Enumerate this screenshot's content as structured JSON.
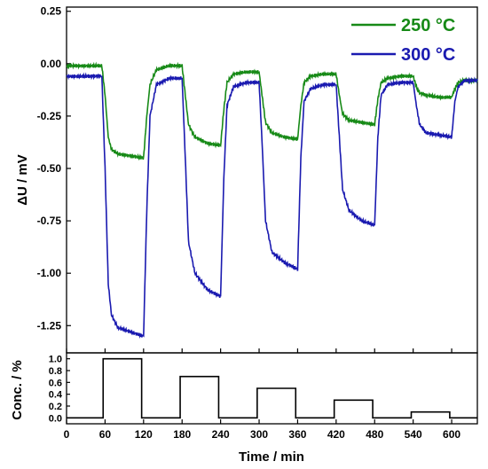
{
  "chart_data": [
    {
      "type": "line",
      "panel": "top",
      "xlabel": "Time / min",
      "ylabel": "ΔU / mV",
      "xlim": [
        0,
        640
      ],
      "ylim": [
        -1.38,
        0.27
      ],
      "x_ticks": [
        0,
        60,
        120,
        180,
        240,
        300,
        360,
        420,
        480,
        540,
        600
      ],
      "y_ticks": [
        0.25,
        0.0,
        -0.25,
        -0.5,
        -0.75,
        -1.0,
        -1.25
      ],
      "y_tick_labels": [
        "0.25",
        "0.00",
        "-0.25",
        "-0.50",
        "-0.75",
        "-1.00",
        "-1.25"
      ],
      "legend_position": "top-right",
      "grid": false,
      "series": [
        {
          "name": "250 °C",
          "color": "#178a17",
          "x": [
            0,
            55,
            60,
            65,
            70,
            80,
            100,
            120,
            125,
            130,
            140,
            160,
            180,
            185,
            190,
            200,
            220,
            240,
            245,
            250,
            260,
            280,
            300,
            305,
            310,
            320,
            340,
            360,
            365,
            370,
            380,
            400,
            420,
            425,
            430,
            440,
            460,
            480,
            485,
            490,
            500,
            520,
            540,
            545,
            550,
            560,
            580,
            600,
            605,
            610,
            620,
            640
          ],
          "values": [
            -0.01,
            -0.01,
            -0.15,
            -0.35,
            -0.41,
            -0.43,
            -0.44,
            -0.45,
            -0.25,
            -0.1,
            -0.03,
            -0.01,
            -0.01,
            -0.15,
            -0.29,
            -0.35,
            -0.38,
            -0.39,
            -0.22,
            -0.09,
            -0.05,
            -0.04,
            -0.04,
            -0.16,
            -0.28,
            -0.33,
            -0.35,
            -0.36,
            -0.2,
            -0.09,
            -0.06,
            -0.05,
            -0.05,
            -0.15,
            -0.24,
            -0.27,
            -0.28,
            -0.29,
            -0.17,
            -0.09,
            -0.07,
            -0.06,
            -0.06,
            -0.11,
            -0.14,
            -0.15,
            -0.16,
            -0.16,
            -0.12,
            -0.09,
            -0.08,
            -0.08
          ]
        },
        {
          "name": "300 °C",
          "color": "#1a1ab0",
          "x": [
            0,
            55,
            60,
            65,
            70,
            80,
            100,
            120,
            125,
            130,
            140,
            160,
            180,
            185,
            190,
            200,
            220,
            240,
            245,
            250,
            260,
            280,
            300,
            305,
            310,
            320,
            340,
            360,
            365,
            370,
            380,
            400,
            420,
            425,
            430,
            440,
            460,
            480,
            485,
            490,
            500,
            520,
            540,
            545,
            550,
            560,
            580,
            600,
            605,
            610,
            620,
            640
          ],
          "values": [
            -0.06,
            -0.06,
            -0.5,
            -1.05,
            -1.2,
            -1.26,
            -1.28,
            -1.3,
            -0.7,
            -0.25,
            -0.1,
            -0.07,
            -0.07,
            -0.45,
            -0.85,
            -1.0,
            -1.08,
            -1.11,
            -0.55,
            -0.2,
            -0.11,
            -0.09,
            -0.09,
            -0.4,
            -0.75,
            -0.9,
            -0.95,
            -0.98,
            -0.45,
            -0.18,
            -0.12,
            -0.1,
            -0.1,
            -0.35,
            -0.6,
            -0.7,
            -0.75,
            -0.77,
            -0.35,
            -0.15,
            -0.1,
            -0.09,
            -0.09,
            -0.2,
            -0.29,
            -0.33,
            -0.34,
            -0.35,
            -0.18,
            -0.11,
            -0.08,
            -0.08
          ]
        }
      ]
    },
    {
      "type": "line",
      "panel": "bottom",
      "xlabel": "Time / min",
      "ylabel": "Conc. / %",
      "xlim": [
        0,
        640
      ],
      "ylim": [
        -0.1,
        1.1
      ],
      "x_ticks": [
        0,
        60,
        120,
        180,
        240,
        300,
        360,
        420,
        480,
        540,
        600
      ],
      "x_tick_labels": [
        "0",
        "60",
        "120",
        "180",
        "240",
        "300",
        "360",
        "420",
        "480",
        "540",
        "600"
      ],
      "y_ticks": [
        0.0,
        0.2,
        0.4,
        0.6,
        0.8,
        1.0
      ],
      "y_tick_labels": [
        "0.0",
        "0.2",
        "0.4",
        "0.6",
        "0.8",
        "1.0"
      ],
      "grid": false,
      "series": [
        {
          "color": "#000000",
          "x": [
            0,
            57,
            57,
            117,
            117,
            177,
            177,
            237,
            237,
            297,
            297,
            357,
            357,
            417,
            417,
            477,
            477,
            537,
            537,
            597,
            597,
            640
          ],
          "values": [
            0,
            0,
            1.0,
            1.0,
            0,
            0,
            0.7,
            0.7,
            0,
            0,
            0.5,
            0.5,
            0,
            0,
            0.3,
            0.3,
            0,
            0,
            0.1,
            0.1,
            0,
            0
          ]
        }
      ]
    }
  ]
}
